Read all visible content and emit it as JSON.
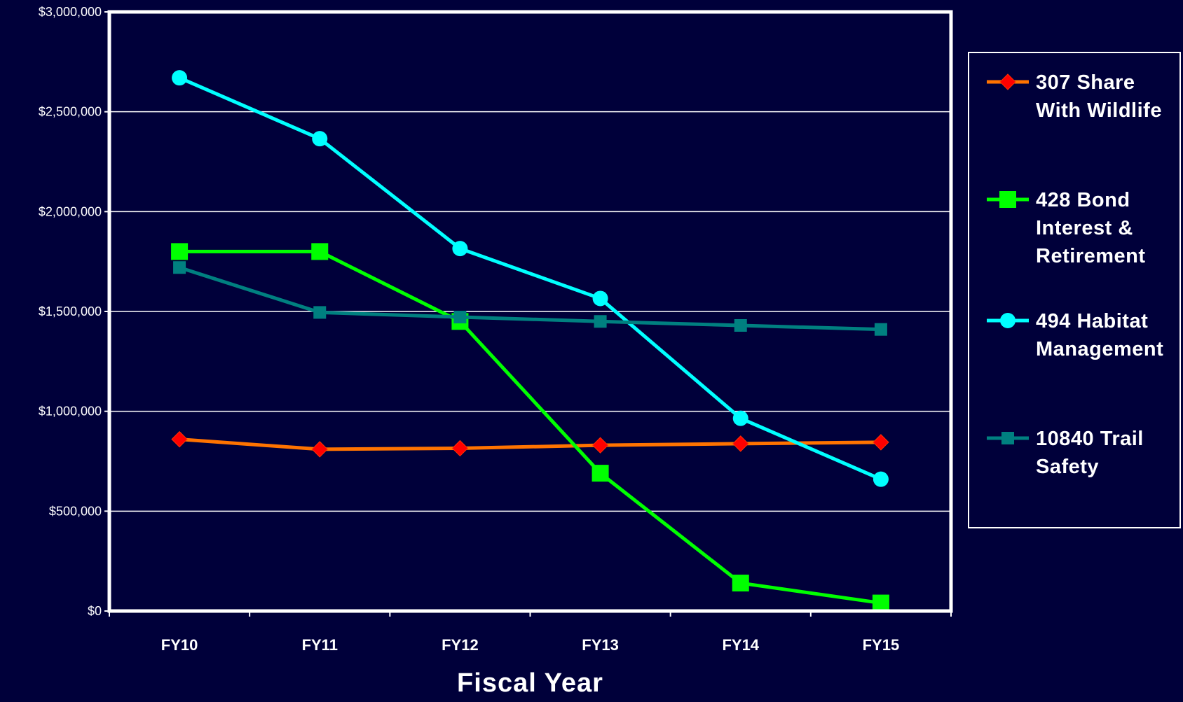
{
  "chart_data": {
    "type": "line",
    "xlabel": "Fiscal Year",
    "ylabel": "",
    "categories": [
      "FY10",
      "FY11",
      "FY12",
      "FY13",
      "FY14",
      "FY15"
    ],
    "ylim": [
      0,
      3000000
    ],
    "yticks": [
      "$0",
      "$500,000",
      "$1,000,000",
      "$1,500,000",
      "$2,000,000",
      "$2,500,000",
      "$3,000,000"
    ],
    "grid": true,
    "legend_position": "right",
    "colors": {
      "background": "#00003a",
      "plot_border": "#ffffff",
      "grid": "#ffffff",
      "text": "#ffffff"
    },
    "series": [
      {
        "name": "307 Share With Wildlife",
        "legend_lines": [
          "307 Share",
          "With Wildlife"
        ],
        "color": "#ff7300",
        "marker": "diamond",
        "marker_color": "#ff0000",
        "values": [
          860000,
          810000,
          815000,
          830000,
          838000,
          845000
        ]
      },
      {
        "name": "428 Bond Interest & Retirement",
        "legend_lines": [
          "428 Bond",
          "Interest &",
          "Retirement"
        ],
        "color": "#00ff00",
        "marker": "square",
        "marker_color": "#00ff00",
        "values": [
          1800000,
          1800000,
          1450000,
          690000,
          140000,
          40000
        ]
      },
      {
        "name": "494 Habitat Management",
        "legend_lines": [
          "494 Habitat",
          "Management"
        ],
        "color": "#00ffff",
        "marker": "circle",
        "marker_color": "#00ffff",
        "values": [
          2670000,
          2365000,
          1815000,
          1565000,
          965000,
          660000
        ]
      },
      {
        "name": "10840 Trail Safety",
        "legend_lines": [
          "10840 Trail",
          "Safety"
        ],
        "color": "#008080",
        "marker": "square",
        "marker_color": "#008080",
        "values": [
          1720000,
          1495000,
          1472000,
          1450000,
          1430000,
          1410000
        ]
      }
    ]
  }
}
